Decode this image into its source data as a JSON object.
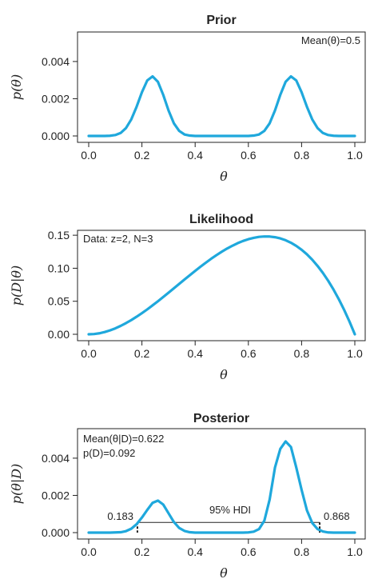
{
  "chart_data": [
    {
      "type": "line",
      "title": "Prior",
      "xlabel": "θ",
      "ylabel": "p(θ)",
      "xlim": [
        0,
        1
      ],
      "ylim": [
        0,
        0.0055
      ],
      "xticks": [
        "0.0",
        "0.2",
        "0.4",
        "0.6",
        "0.8",
        "1.0"
      ],
      "yticks": [
        "0.000",
        "0.002",
        "0.004"
      ],
      "annotations": [
        {
          "text": "Mean(θ)=0.5",
          "placement": "top-right"
        }
      ],
      "series": [
        {
          "x": [
            0.0,
            0.02,
            0.04,
            0.06,
            0.08,
            0.1,
            0.12,
            0.14,
            0.16,
            0.18,
            0.2,
            0.22,
            0.24,
            0.26,
            0.28,
            0.3,
            0.32,
            0.34,
            0.36,
            0.38,
            0.4,
            0.42,
            0.44,
            0.46,
            0.48,
            0.5,
            0.52,
            0.54,
            0.56,
            0.58,
            0.6,
            0.62,
            0.64,
            0.66,
            0.68,
            0.7,
            0.72,
            0.74,
            0.76,
            0.78,
            0.8,
            0.82,
            0.84,
            0.86,
            0.88,
            0.9,
            0.92,
            0.94,
            0.96,
            0.98,
            1.0
          ],
          "values": [
            0.0,
            0.0,
            0.0,
            0.0,
            1e-05,
            5e-05,
            0.00016,
            0.00042,
            0.00089,
            0.00157,
            0.00235,
            0.00298,
            0.0032,
            0.00291,
            0.00221,
            0.00137,
            0.00068,
            0.00027,
            8e-05,
            2e-05,
            0.0,
            0.0,
            0.0,
            0.0,
            0.0,
            0.0,
            0.0,
            0.0,
            0.0,
            0.0,
            0.0,
            2e-05,
            8e-05,
            0.00027,
            0.00068,
            0.00137,
            0.00221,
            0.00291,
            0.0032,
            0.00298,
            0.00235,
            0.00157,
            0.00089,
            0.00042,
            0.00016,
            5e-05,
            1e-05,
            0.0,
            0.0,
            0.0,
            0.0
          ]
        }
      ]
    },
    {
      "type": "line",
      "title": "Likelihood",
      "xlabel": "θ",
      "ylabel": "p(D|θ)",
      "xlim": [
        0,
        1
      ],
      "ylim": [
        0,
        0.155
      ],
      "xticks": [
        "0.0",
        "0.2",
        "0.4",
        "0.6",
        "0.8",
        "1.0"
      ],
      "yticks": [
        "0.00",
        "0.05",
        "0.10",
        "0.15"
      ],
      "annotations": [
        {
          "text": "Data: z=2, N=3",
          "placement": "top-left"
        }
      ],
      "series": [
        {
          "x": [
            0.0,
            0.02,
            0.04,
            0.06,
            0.08,
            0.1,
            0.12,
            0.14,
            0.16,
            0.18,
            0.2,
            0.22,
            0.24,
            0.26,
            0.28,
            0.3,
            0.32,
            0.34,
            0.36,
            0.38,
            0.4,
            0.42,
            0.44,
            0.46,
            0.48,
            0.5,
            0.52,
            0.54,
            0.56,
            0.58,
            0.6,
            0.62,
            0.64,
            0.66,
            0.68,
            0.7,
            0.72,
            0.74,
            0.76,
            0.78,
            0.8,
            0.82,
            0.84,
            0.86,
            0.88,
            0.9,
            0.92,
            0.94,
            0.96,
            0.98,
            1.0
          ],
          "values": [
            0.0,
            0.0004,
            0.0015,
            0.0034,
            0.0059,
            0.009,
            0.0127,
            0.0169,
            0.0215,
            0.0266,
            0.032,
            0.0377,
            0.0438,
            0.05,
            0.0564,
            0.063,
            0.0696,
            0.0763,
            0.0829,
            0.0895,
            0.096,
            0.1023,
            0.1084,
            0.1143,
            0.1198,
            0.125,
            0.1298,
            0.1341,
            0.138,
            0.1413,
            0.144,
            0.146,
            0.1475,
            0.1481,
            0.148,
            0.147,
            0.1452,
            0.1424,
            0.1386,
            0.1338,
            0.128,
            0.1211,
            0.1129,
            0.1035,
            0.0929,
            0.081,
            0.0677,
            0.053,
            0.0369,
            0.0192,
            0.0
          ]
        }
      ]
    },
    {
      "type": "line",
      "title": "Posterior",
      "xlabel": "θ",
      "ylabel": "p(θ|D)",
      "xlim": [
        0,
        1
      ],
      "ylim": [
        0,
        0.0055
      ],
      "xticks": [
        "0.0",
        "0.2",
        "0.4",
        "0.6",
        "0.8",
        "1.0"
      ],
      "yticks": [
        "0.000",
        "0.002",
        "0.004"
      ],
      "annotations": [
        {
          "text": "Mean(θ|D)=0.622",
          "placement": "top-left"
        },
        {
          "text": "p(D)=0.092",
          "placement": "top-left"
        }
      ],
      "hdi": {
        "label": "95% HDI",
        "low": 0.183,
        "high": 0.868,
        "low_label": "0.183",
        "high_label": "0.868",
        "height": 0.00055
      },
      "series": [
        {
          "x": [
            0.0,
            0.02,
            0.04,
            0.06,
            0.08,
            0.1,
            0.12,
            0.14,
            0.16,
            0.18,
            0.2,
            0.22,
            0.24,
            0.26,
            0.28,
            0.3,
            0.32,
            0.34,
            0.36,
            0.38,
            0.4,
            0.42,
            0.44,
            0.46,
            0.48,
            0.5,
            0.52,
            0.54,
            0.56,
            0.58,
            0.6,
            0.62,
            0.64,
            0.66,
            0.68,
            0.7,
            0.72,
            0.74,
            0.76,
            0.78,
            0.8,
            0.82,
            0.84,
            0.86,
            0.88,
            0.9,
            0.92,
            0.94,
            0.96,
            0.98,
            1.0
          ],
          "values": [
            0.0,
            0.0,
            0.0,
            0.0,
            0.0,
            1e-05,
            2e-05,
            8e-05,
            0.00021,
            0.00045,
            0.00081,
            0.00122,
            0.0016,
            0.00172,
            0.00151,
            0.00104,
            0.00057,
            0.00025,
            9e-05,
            2e-05,
            0.0,
            0.0,
            0.0,
            0.0,
            0.0,
            0.0,
            0.0,
            0.0,
            0.0,
            0.0,
            1e-05,
            5e-05,
            0.00019,
            0.00064,
            0.00178,
            0.0035,
            0.0045,
            0.0049,
            0.0046,
            0.0035,
            0.0023,
            0.0012,
            0.00052,
            0.00019,
            6e-05,
            1e-05,
            0.0,
            0.0,
            0.0,
            0.0,
            0.0
          ]
        }
      ]
    }
  ]
}
